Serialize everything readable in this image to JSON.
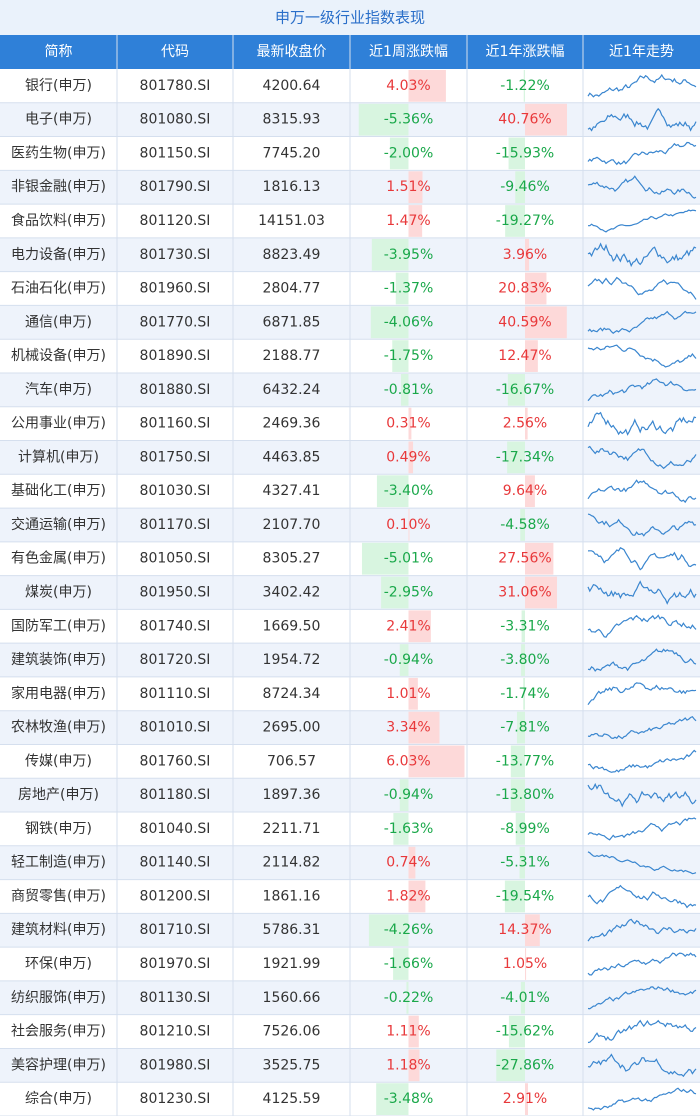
{
  "title": "申万一级行业指数表现",
  "table": {
    "header": [
      "简称",
      "代码",
      "最新收盘价",
      "近1周涨跌幅",
      "近1年涨跌幅",
      "近1年走势"
    ],
    "rows": [
      [
        "银行(申万)",
        "801780.SI",
        "4200.64",
        {
          "value": 4.03,
          "label": "4.03%"
        },
        {
          "value": -1.22,
          "label": "-1.22%"
        }
      ],
      [
        "电子(申万)",
        "801080.SI",
        "8315.93",
        {
          "value": -5.36,
          "label": "-5.36%"
        },
        {
          "value": 40.76,
          "label": "40.76%"
        }
      ],
      [
        "医药生物(申万)",
        "801150.SI",
        "7745.20",
        {
          "value": -2.0,
          "label": "-2.00%"
        },
        {
          "value": -15.93,
          "label": "-15.93%"
        }
      ],
      [
        "非银金融(申万)",
        "801790.SI",
        "1816.13",
        {
          "value": 1.51,
          "label": "1.51%"
        },
        {
          "value": -9.46,
          "label": "-9.46%"
        }
      ],
      [
        "食品饮料(申万)",
        "801120.SI",
        "14151.03",
        {
          "value": 1.47,
          "label": "1.47%"
        },
        {
          "value": -19.27,
          "label": "-19.27%"
        }
      ],
      [
        "电力设备(申万)",
        "801730.SI",
        "8823.49",
        {
          "value": -3.95,
          "label": "-3.95%"
        },
        {
          "value": 3.96,
          "label": "3.96%"
        }
      ],
      [
        "石油石化(申万)",
        "801960.SI",
        "2804.77",
        {
          "value": -1.37,
          "label": "-1.37%"
        },
        {
          "value": 20.83,
          "label": "20.83%"
        }
      ],
      [
        "通信(申万)",
        "801770.SI",
        "6871.85",
        {
          "value": -4.06,
          "label": "-4.06%"
        },
        {
          "value": 40.59,
          "label": "40.59%"
        }
      ],
      [
        "机械设备(申万)",
        "801890.SI",
        "2188.77",
        {
          "value": -1.75,
          "label": "-1.75%"
        },
        {
          "value": 12.47,
          "label": "12.47%"
        }
      ],
      [
        "汽车(申万)",
        "801880.SI",
        "6432.24",
        {
          "value": -0.81,
          "label": "-0.81%"
        },
        {
          "value": -16.67,
          "label": "-16.67%"
        }
      ],
      [
        "公用事业(申万)",
        "801160.SI",
        "2469.36",
        {
          "value": 0.31,
          "label": "0.31%"
        },
        {
          "value": 2.56,
          "label": "2.56%"
        }
      ],
      [
        "计算机(申万)",
        "801750.SI",
        "4463.85",
        {
          "value": 0.49,
          "label": "0.49%"
        },
        {
          "value": -17.34,
          "label": "-17.34%"
        }
      ],
      [
        "基础化工(申万)",
        "801030.SI",
        "4327.41",
        {
          "value": -3.4,
          "label": "-3.40%"
        },
        {
          "value": 9.64,
          "label": "9.64%"
        }
      ],
      [
        "交通运输(申万)",
        "801170.SI",
        "2107.70",
        {
          "value": 0.1,
          "label": "0.10%"
        },
        {
          "value": -4.58,
          "label": "-4.58%"
        }
      ],
      [
        "有色金属(申万)",
        "801050.SI",
        "8305.27",
        {
          "value": -5.01,
          "label": "-5.01%"
        },
        {
          "value": 27.56,
          "label": "27.56%"
        }
      ],
      [
        "煤炭(申万)",
        "801950.SI",
        "3402.42",
        {
          "value": -2.95,
          "label": "-2.95%"
        },
        {
          "value": 31.06,
          "label": "31.06%"
        }
      ],
      [
        "国防军工(申万)",
        "801740.SI",
        "1669.50",
        {
          "value": 2.41,
          "label": "2.41%"
        },
        {
          "value": -3.31,
          "label": "-3.31%"
        }
      ],
      [
        "建筑装饰(申万)",
        "801720.SI",
        "1954.72",
        {
          "value": -0.94,
          "label": "-0.94%"
        },
        {
          "value": -3.8,
          "label": "-3.80%"
        }
      ],
      [
        "家用电器(申万)",
        "801110.SI",
        "8724.34",
        {
          "value": 1.01,
          "label": "1.01%"
        },
        {
          "value": -1.74,
          "label": "-1.74%"
        }
      ],
      [
        "农林牧渔(申万)",
        "801010.SI",
        "2695.00",
        {
          "value": 3.34,
          "label": "3.34%"
        },
        {
          "value": -7.81,
          "label": "-7.81%"
        }
      ],
      [
        "传媒(申万)",
        "801760.SI",
        "706.57",
        {
          "value": 6.03,
          "label": "6.03%"
        },
        {
          "value": -13.77,
          "label": "-13.77%"
        }
      ],
      [
        "房地产(申万)",
        "801180.SI",
        "1897.36",
        {
          "value": -0.94,
          "label": "-0.94%"
        },
        {
          "value": -13.8,
          "label": "-13.80%"
        }
      ],
      [
        "钢铁(申万)",
        "801040.SI",
        "2211.71",
        {
          "value": -1.63,
          "label": "-1.63%"
        },
        {
          "value": -8.99,
          "label": "-8.99%"
        }
      ],
      [
        "轻工制造(申万)",
        "801140.SI",
        "2114.82",
        {
          "value": 0.74,
          "label": "0.74%"
        },
        {
          "value": -5.31,
          "label": "-5.31%"
        }
      ],
      [
        "商贸零售(申万)",
        "801200.SI",
        "1861.16",
        {
          "value": 1.82,
          "label": "1.82%"
        },
        {
          "value": -19.54,
          "label": "-19.54%"
        }
      ],
      [
        "建筑材料(申万)",
        "801710.SI",
        "5786.31",
        {
          "value": -4.26,
          "label": "-4.26%"
        },
        {
          "value": 14.37,
          "label": "14.37%"
        }
      ],
      [
        "环保(申万)",
        "801970.SI",
        "1921.99",
        {
          "value": -1.66,
          "label": "-1.66%"
        },
        {
          "value": 1.05,
          "label": "1.05%"
        }
      ],
      [
        "纺织服饰(申万)",
        "801130.SI",
        "1560.66",
        {
          "value": -0.22,
          "label": "-0.22%"
        },
        {
          "value": -4.01,
          "label": "-4.01%"
        }
      ],
      [
        "社会服务(申万)",
        "801210.SI",
        "7526.06",
        {
          "value": 1.11,
          "label": "1.11%"
        },
        {
          "value": -15.62,
          "label": "-15.62%"
        }
      ],
      [
        "美容护理(申万)",
        "801980.SI",
        "3525.75",
        {
          "value": 1.18,
          "label": "1.18%"
        },
        {
          "value": -27.86,
          "label": "-27.86%"
        }
      ],
      [
        "综合(申万)",
        "801230.SI",
        "4125.59",
        {
          "value": -3.48,
          "label": "-3.48%"
        },
        {
          "value": 2.91,
          "label": "2.91%"
        }
      ]
    ]
  }
}
